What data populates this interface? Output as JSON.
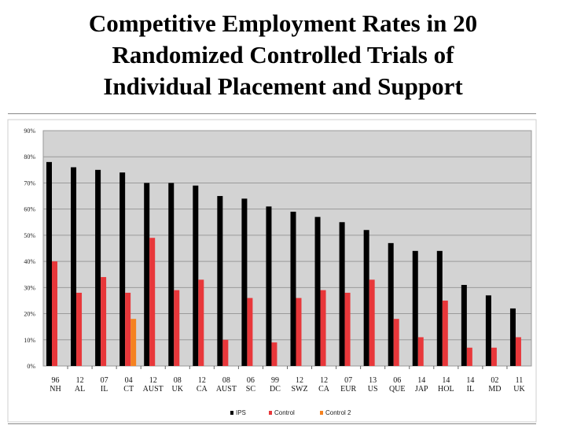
{
  "header": {
    "title_lines": [
      "Competitive Employment Rates in 20",
      "Randomized Controlled Trials of",
      "Individual Placement and Support"
    ]
  },
  "chart_data": {
    "type": "bar",
    "title": "",
    "xlabel": "",
    "ylabel": "",
    "ylim": [
      0,
      90
    ],
    "y_ticks": [
      "0%",
      "10%",
      "20%",
      "30%",
      "40%",
      "50%",
      "60%",
      "70%",
      "80%",
      "90%"
    ],
    "grid": true,
    "legend_position": "bottom",
    "categories": [
      [
        "96",
        "NH"
      ],
      [
        "12",
        "AL"
      ],
      [
        "07",
        "IL"
      ],
      [
        "04",
        "CT"
      ],
      [
        "12",
        "AUST"
      ],
      [
        "08",
        "UK"
      ],
      [
        "12",
        "CA"
      ],
      [
        "08",
        "AUST"
      ],
      [
        "06",
        "SC"
      ],
      [
        "99",
        "DC"
      ],
      [
        "12",
        "SWZ"
      ],
      [
        "12",
        "CA"
      ],
      [
        "07",
        "EUR"
      ],
      [
        "13",
        "US"
      ],
      [
        "06",
        "QUE"
      ],
      [
        "14",
        "JAP"
      ],
      [
        "14",
        "HOL"
      ],
      [
        "14",
        "IL"
      ],
      [
        "02",
        "MD"
      ],
      [
        "11",
        "UK"
      ]
    ],
    "series": [
      {
        "name": "IPS",
        "color": "#000000",
        "values": [
          78,
          76,
          75,
          74,
          70,
          70,
          69,
          65,
          64,
          61,
          59,
          57,
          55,
          52,
          47,
          44,
          44,
          31,
          27,
          22
        ]
      },
      {
        "name": "Control",
        "color": "#e8373a",
        "values": [
          40,
          28,
          34,
          28,
          49,
          29,
          33,
          10,
          26,
          9,
          26,
          29,
          28,
          33,
          18,
          11,
          25,
          7,
          7,
          11
        ]
      },
      {
        "name": "Control 2",
        "color": "#f58220",
        "values": [
          null,
          null,
          null,
          18,
          null,
          null,
          null,
          null,
          null,
          null,
          null,
          null,
          null,
          null,
          null,
          null,
          null,
          null,
          null,
          null
        ]
      }
    ]
  }
}
